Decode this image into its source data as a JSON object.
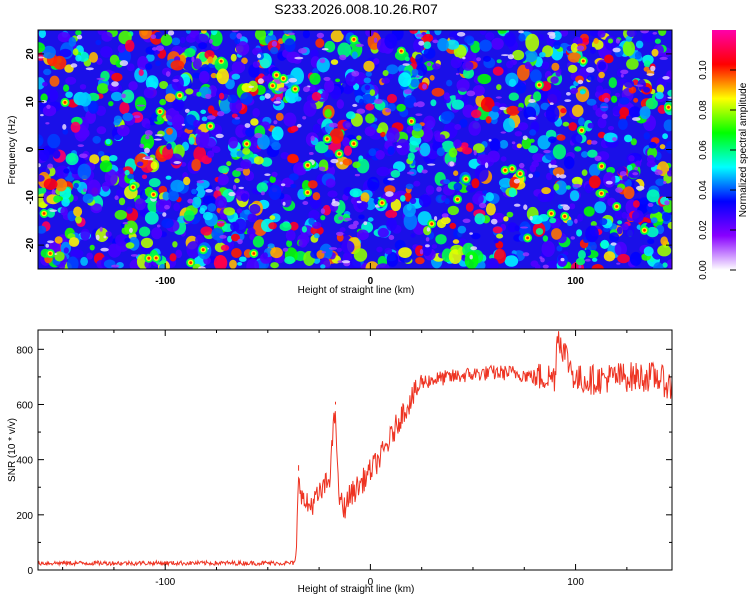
{
  "page": {
    "title": "S233.2026.008.10.26.R07"
  },
  "chart_data": [
    {
      "type": "heatmap",
      "title": "S233.2026.008.10.26.R07",
      "xlabel": "Height of straight line (km)",
      "ylabel": "Frequency (Hz)",
      "xlim": [
        -162,
        147
      ],
      "ylim": [
        -25,
        25
      ],
      "x_ticks": [
        {
          "value": -100,
          "label": "-100"
        },
        {
          "value": 0,
          "label": "0"
        },
        {
          "value": 100,
          "label": "100"
        }
      ],
      "y_ticks": [
        {
          "value": -20,
          "label": "-20"
        },
        {
          "value": -10,
          "label": "-10"
        },
        {
          "value": 0,
          "label": "0"
        },
        {
          "value": 10,
          "label": "10"
        },
        {
          "value": 20,
          "label": "20"
        }
      ],
      "colorbar": {
        "label": "Normalized spectral amplitude",
        "range": [
          0,
          0.12
        ],
        "ticks": [
          {
            "value": 0.0,
            "label": "0.00"
          },
          {
            "value": 0.02,
            "label": "0.02"
          },
          {
            "value": 0.04,
            "label": "0.04"
          },
          {
            "value": 0.06,
            "label": "0.06"
          },
          {
            "value": 0.08,
            "label": "0.08"
          },
          {
            "value": 0.1,
            "label": "0.10"
          }
        ],
        "colors": [
          "#ffffff",
          "#8800ff",
          "#0000ff",
          "#00ffff",
          "#00ff00",
          "#ffff00",
          "#ff0000",
          "#ff00aa"
        ]
      },
      "description_values": "random speckle of spectral amplitude, mostly 0.01-0.04 with scattered peaks up to ~0.11"
    },
    {
      "type": "line",
      "xlabel": "Height of straight line (km)",
      "ylabel": "SNR (10 * v/v)",
      "xlim": [
        -162,
        147
      ],
      "ylim": [
        0,
        870
      ],
      "line_color": "#ee3322",
      "x_ticks": [
        {
          "value": -100,
          "label": "-100"
        },
        {
          "value": 0,
          "label": "0"
        },
        {
          "value": 100,
          "label": "100"
        }
      ],
      "y_ticks": [
        {
          "value": 0,
          "label": "0"
        },
        {
          "value": 200,
          "label": "200"
        },
        {
          "value": 400,
          "label": "400"
        },
        {
          "value": 600,
          "label": "600"
        },
        {
          "value": 800,
          "label": "800"
        }
      ],
      "series": [
        {
          "name": "SNR",
          "x": [
            -162,
            -140,
            -120,
            -100,
            -80,
            -60,
            -40,
            -37,
            -36,
            -35,
            -33,
            -30,
            -25,
            -20,
            -17,
            -16,
            -15,
            -13,
            -10,
            -5,
            0,
            5,
            10,
            15,
            20,
            25,
            30,
            40,
            50,
            60,
            70,
            80,
            90,
            91,
            100,
            110,
            120,
            130,
            140,
            147
          ],
          "y": [
            25,
            25,
            25,
            25,
            25,
            25,
            25,
            25,
            60,
            360,
            250,
            230,
            270,
            330,
            600,
            330,
            260,
            220,
            270,
            310,
            360,
            410,
            480,
            560,
            620,
            680,
            690,
            700,
            710,
            715,
            715,
            700,
            700,
            860,
            690,
            690,
            700,
            700,
            700,
            660
          ]
        }
      ]
    }
  ]
}
